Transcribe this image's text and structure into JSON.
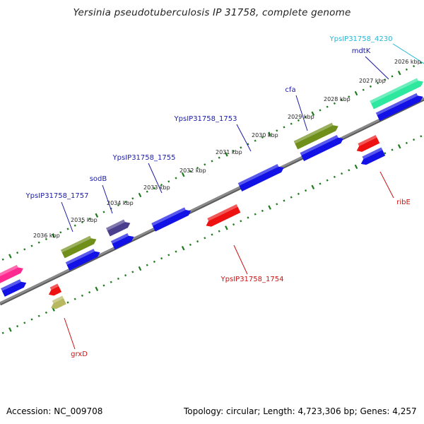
{
  "title": "Yersinia pseudotuberculosis IP 31758, complete genome",
  "footer": {
    "accession": "Accession: NC_009708",
    "summary": "Topology: circular; Length: 4,723,306 bp; Genes: 4,257"
  },
  "colors": {
    "backbone": "#8a8a8a",
    "tick": "#1d7a1d",
    "label_forward": "#1a1aa8",
    "label_reverse": "#cc1111",
    "label_special": "#22b8d8"
  },
  "ticks": [
    {
      "label": "2026 kbp"
    },
    {
      "label": "2027 kbp"
    },
    {
      "label": "2028 kbp"
    },
    {
      "label": "2029 kbp"
    },
    {
      "label": "2030 kbp"
    },
    {
      "label": "2031 kbp"
    },
    {
      "label": "2032 kbp"
    },
    {
      "label": "2033 kbp"
    },
    {
      "label": "2034 kbp"
    },
    {
      "label": "2035 kbp"
    },
    {
      "label": "2036 kbp"
    }
  ],
  "gene_labels": [
    {
      "text": "YpsIP31758_4230",
      "strand": "special"
    },
    {
      "text": "mdtK",
      "strand": "forward"
    },
    {
      "text": "cfa",
      "strand": "forward"
    },
    {
      "text": "YpsIP31758_1753",
      "strand": "forward"
    },
    {
      "text": "YpsIP31758_1755",
      "strand": "forward"
    },
    {
      "text": "sodB",
      "strand": "forward"
    },
    {
      "text": "YpsIP31758_1757",
      "strand": "forward"
    },
    {
      "text": "ribE",
      "strand": "reverse"
    },
    {
      "text": "YpsIP31758_1754",
      "strand": "reverse"
    },
    {
      "text": "grxD",
      "strand": "reverse"
    }
  ],
  "genes": [
    {
      "track": "forward-feature",
      "color": "#2ee8a0"
    },
    {
      "track": "forward-cds",
      "color": "#1212e6"
    },
    {
      "track": "forward-feature",
      "color": "#6f8f1a"
    },
    {
      "track": "forward-cds",
      "color": "#1212e6"
    },
    {
      "track": "forward-cds",
      "color": "#1212e6"
    },
    {
      "track": "forward-cds",
      "color": "#1212e6"
    },
    {
      "track": "forward-feature",
      "color": "#4a3f8c"
    },
    {
      "track": "forward-cds",
      "color": "#1212e6"
    },
    {
      "track": "forward-feature",
      "color": "#6f8f1a"
    },
    {
      "track": "forward-cds",
      "color": "#1212e6"
    },
    {
      "track": "forward-feature",
      "color": "#ff2a90"
    },
    {
      "track": "forward-cds",
      "color": "#1212e6"
    },
    {
      "track": "reverse-feature",
      "color": "#ee1111"
    },
    {
      "track": "reverse-cds",
      "color": "#1212e6"
    },
    {
      "track": "reverse-feature",
      "color": "#ee1111"
    },
    {
      "track": "reverse-feature",
      "color": "#ee1111"
    },
    {
      "track": "reverse-cds",
      "color": "#b8b860"
    }
  ]
}
